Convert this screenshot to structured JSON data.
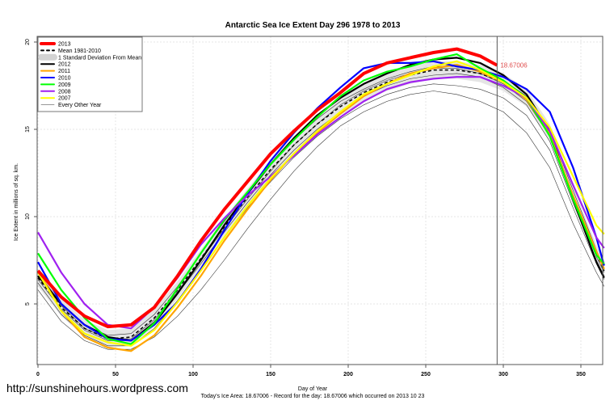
{
  "chart_data": {
    "type": "line",
    "title": "Antarctic Sea Ice Extent Day 296 1978 to 2013",
    "xlabel": "Day of Year",
    "ylabel": "Ice Extent in millions of sq. km.",
    "subtitle": "Today's Ice Area: 18.67006  - Record for the day: 18.67006 which occurred on 2013 10 23",
    "watermark": "http://sunshinehours.wordpress.com",
    "xlim": [
      0,
      365
    ],
    "ylim": [
      1.6,
      20.3
    ],
    "xticks": [
      "0",
      "50",
      "100",
      "150",
      "200",
      "250",
      "300",
      "350"
    ],
    "yticks": [
      "5",
      "10",
      "15",
      "20"
    ],
    "grid": true,
    "legend_placement": "top-left",
    "current_day": 296,
    "current_value_label": "18.67006",
    "x": [
      0,
      15,
      30,
      45,
      60,
      75,
      90,
      105,
      120,
      135,
      150,
      165,
      180,
      195,
      210,
      225,
      240,
      255,
      270,
      285,
      300,
      315,
      330,
      345,
      360,
      365
    ],
    "mean": {
      "name": "Mean 1981-2010",
      "values": [
        6.5,
        4.8,
        3.6,
        3.0,
        3.1,
        4.2,
        5.8,
        7.6,
        9.4,
        11.1,
        12.7,
        14.1,
        15.3,
        16.3,
        17.1,
        17.7,
        18.1,
        18.4,
        18.4,
        18.2,
        17.7,
        16.8,
        14.8,
        11.2,
        7.9,
        6.9
      ]
    },
    "sd_band": {
      "name": "1 Standard Deviation From Mean",
      "sd": 0.5
    },
    "other_years": {
      "name": "Every Other Year",
      "series": [
        [
          6.2,
          4.4,
          3.2,
          2.6,
          2.6,
          3.6,
          5.2,
          7.0,
          8.8,
          10.5,
          12.0,
          13.4,
          14.6,
          15.6,
          16.4,
          17.0,
          17.4,
          17.6,
          17.5,
          17.3,
          16.8,
          15.8,
          13.8,
          10.5,
          7.3,
          6.4
        ],
        [
          6.8,
          5.0,
          3.8,
          3.2,
          3.3,
          4.4,
          6.0,
          7.9,
          9.7,
          11.4,
          13.0,
          14.4,
          15.6,
          16.6,
          17.3,
          17.9,
          18.3,
          18.6,
          18.6,
          18.3,
          17.8,
          16.9,
          15.0,
          11.5,
          8.1,
          7.0
        ],
        [
          5.8,
          4.0,
          2.9,
          2.4,
          2.4,
          3.1,
          4.3,
          5.8,
          7.5,
          9.3,
          11.0,
          12.6,
          14.0,
          15.2,
          16.0,
          16.6,
          17.0,
          17.2,
          17.0,
          16.6,
          16.0,
          14.8,
          12.8,
          9.6,
          6.8,
          6.0
        ],
        [
          6.4,
          4.7,
          3.5,
          2.9,
          2.9,
          4.0,
          5.6,
          7.3,
          9.1,
          10.8,
          12.4,
          13.8,
          15.0,
          16.0,
          16.9,
          17.5,
          17.9,
          18.1,
          18.2,
          18.0,
          17.4,
          16.4,
          14.3,
          10.8,
          7.5,
          6.6
        ],
        [
          6.6,
          4.9,
          3.6,
          3.0,
          3.0,
          4.1,
          5.7,
          7.5,
          9.3,
          11.0,
          12.6,
          14.1,
          15.3,
          16.4,
          17.2,
          17.8,
          18.2,
          18.5,
          18.5,
          18.2,
          17.6,
          16.6,
          14.6,
          11.1,
          7.7,
          6.8
        ]
      ]
    },
    "series": [
      {
        "name": "2012",
        "color": "#000000",
        "values": [
          6.6,
          5.0,
          3.8,
          3.1,
          2.9,
          3.9,
          5.6,
          7.5,
          9.5,
          11.3,
          13.0,
          14.5,
          15.8,
          16.8,
          17.6,
          18.2,
          18.7,
          19.0,
          19.1,
          18.8,
          18.1,
          17.0,
          14.9,
          11.0,
          7.4,
          6.5
        ]
      },
      {
        "name": "2011",
        "color": "#ffa500",
        "values": [
          6.9,
          4.6,
          3.1,
          2.5,
          2.3,
          3.2,
          4.8,
          6.6,
          8.6,
          10.4,
          12.1,
          13.6,
          14.8,
          15.9,
          16.9,
          17.6,
          18.2,
          18.5,
          18.7,
          18.3,
          17.7,
          16.7,
          14.7,
          11.2,
          8.0,
          7.0
        ]
      },
      {
        "name": "2010",
        "color": "#0000ff",
        "values": [
          7.4,
          5.0,
          3.8,
          3.0,
          2.9,
          3.8,
          5.1,
          7.0,
          9.2,
          11.3,
          13.2,
          14.8,
          16.2,
          17.4,
          18.5,
          18.8,
          18.8,
          18.9,
          18.6,
          18.4,
          18.0,
          17.3,
          16.0,
          12.8,
          8.8,
          7.2
        ]
      },
      {
        "name": "2009",
        "color": "#00ff00",
        "values": [
          7.9,
          5.8,
          4.2,
          3.0,
          2.7,
          3.9,
          5.9,
          7.9,
          9.8,
          11.4,
          13.0,
          14.4,
          15.7,
          16.9,
          17.8,
          18.3,
          18.6,
          19.0,
          19.3,
          18.5,
          17.8,
          16.8,
          14.6,
          11.0,
          7.8,
          7.3
        ]
      },
      {
        "name": "2008",
        "color": "#a020f0",
        "values": [
          9.1,
          6.8,
          5.0,
          3.8,
          3.6,
          4.8,
          6.5,
          8.4,
          9.9,
          11.2,
          12.3,
          13.5,
          14.7,
          15.7,
          16.6,
          17.3,
          17.7,
          17.9,
          18.0,
          18.0,
          17.5,
          16.8,
          14.9,
          11.8,
          8.8,
          8.2
        ]
      },
      {
        "name": "2007",
        "color": "#ffff00",
        "values": [
          6.8,
          4.6,
          3.3,
          2.8,
          2.6,
          3.5,
          5.1,
          6.9,
          8.8,
          10.6,
          12.2,
          13.6,
          14.9,
          16.0,
          17.0,
          17.6,
          18.1,
          18.6,
          18.9,
          18.4,
          17.7,
          16.8,
          15.1,
          12.3,
          9.5,
          9.0
        ]
      },
      {
        "name": "2013",
        "color": "#ff0000",
        "x": [
          0,
          15,
          30,
          45,
          60,
          75,
          90,
          105,
          120,
          135,
          150,
          165,
          180,
          195,
          210,
          225,
          240,
          255,
          270,
          285,
          296
        ],
        "values": [
          6.9,
          5.4,
          4.3,
          3.7,
          3.8,
          4.8,
          6.6,
          8.6,
          10.4,
          12.0,
          13.6,
          14.9,
          16.1,
          17.1,
          18.2,
          18.8,
          19.1,
          19.4,
          19.6,
          19.2,
          18.67
        ]
      }
    ],
    "legend": [
      "2013",
      "Mean 1981-2010",
      "1 Standard Deviation From Mean",
      "2012",
      "2011",
      "2010",
      "2009",
      "2008",
      "2007",
      "Every Other Year"
    ]
  }
}
